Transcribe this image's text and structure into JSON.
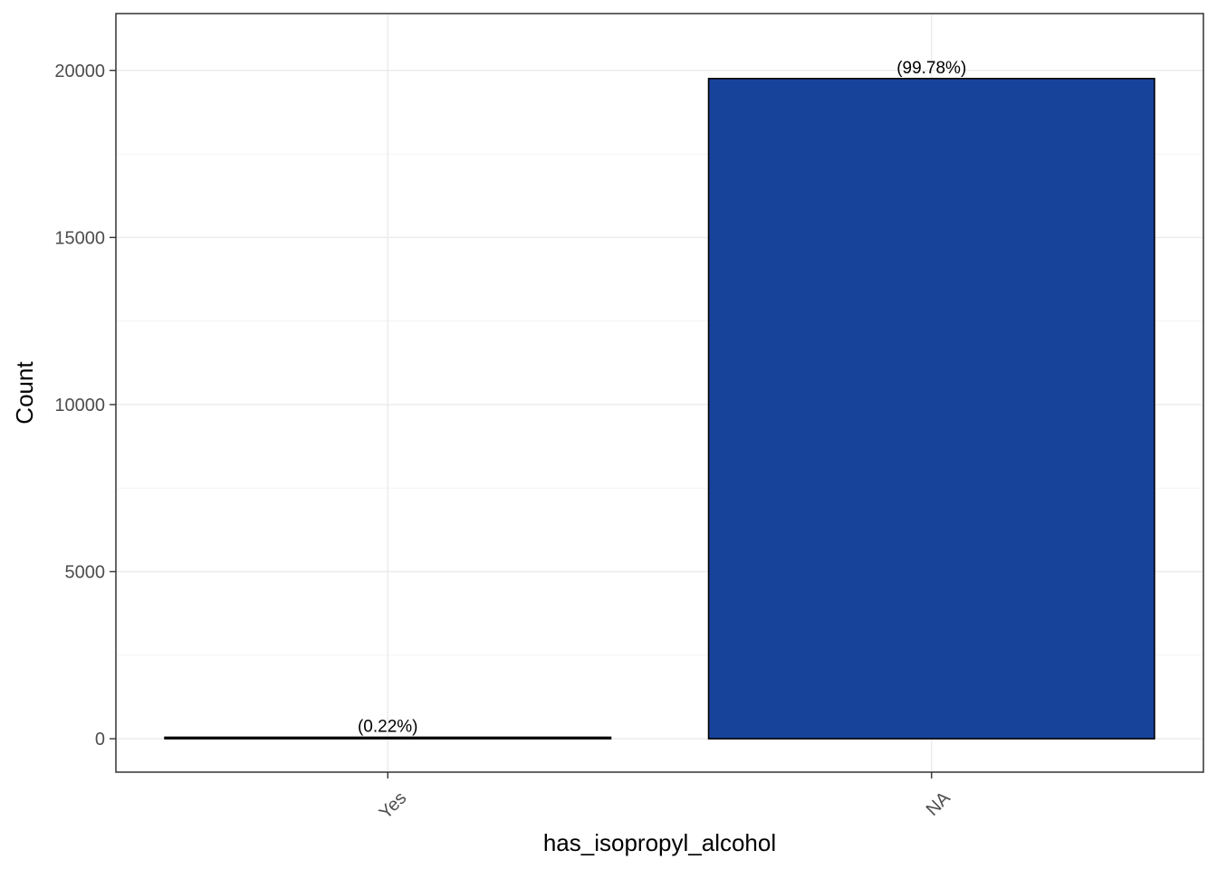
{
  "chart_data": {
    "type": "bar",
    "title": "",
    "xlabel": "has_isopropyl_alcohol",
    "ylabel": "Count",
    "categories": [
      "Yes",
      "NA"
    ],
    "values": [
      44,
      19756
    ],
    "data_labels": [
      "(0.22%)",
      "(99.78%)"
    ],
    "ylim": [
      -1000,
      21700
    ],
    "yticks": [
      0,
      5000,
      10000,
      15000,
      20000
    ],
    "grid": true,
    "legend": "none",
    "bar_fill": "#17439B",
    "bar_stroke": "#000000",
    "x_tick_rotation": 45
  }
}
